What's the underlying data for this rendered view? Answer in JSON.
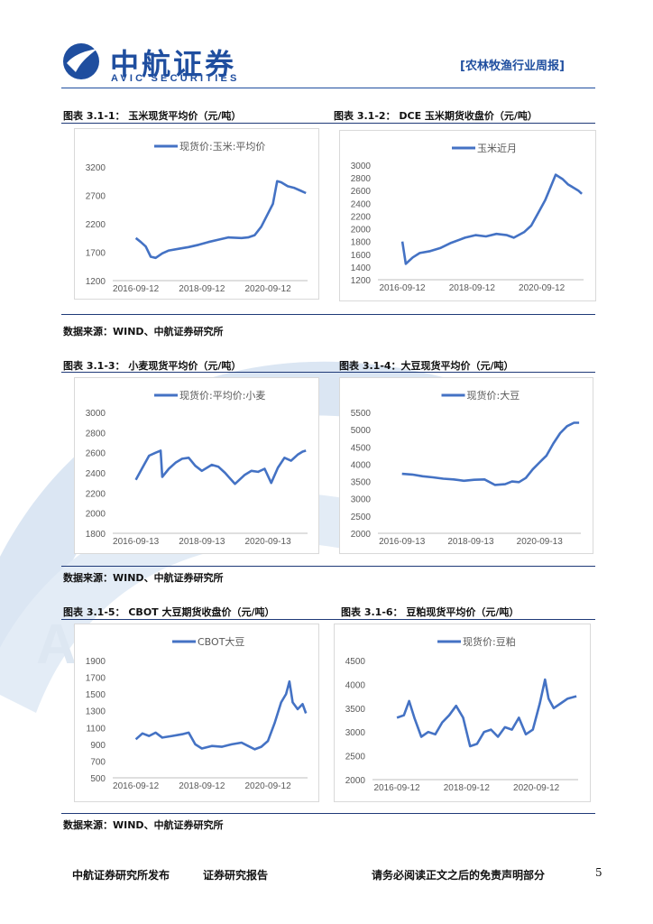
{
  "header": {
    "logo_name": "中航证券",
    "logo_sub": "AVIC SECURITIES",
    "logo_badge": "AVIC",
    "section_tag": "[农林牧渔行业周报]"
  },
  "theme": {
    "accent": "#1f4e9f",
    "line_color": "#4472c4",
    "watermark": "#c9d9ec"
  },
  "figures": [
    {
      "title": "图表 3.1-1：  玉米现货平均价（元/吨）",
      "chart_data": {
        "type": "line",
        "series": [
          {
            "name": "现货价:玉米:平均价"
          }
        ],
        "x_ticks": [
          "2016-09-12",
          "2018-09-12",
          "2020-09-12"
        ],
        "y_ticks": [
          1200,
          1700,
          2200,
          2700,
          3200
        ],
        "ylim": [
          1200,
          3200
        ],
        "x": [
          2016.7,
          2016.85,
          2017.0,
          2017.15,
          2017.3,
          2017.5,
          2017.7,
          2018.0,
          2018.3,
          2018.6,
          2018.9,
          2019.2,
          2019.5,
          2019.9,
          2020.1,
          2020.3,
          2020.5,
          2020.7,
          2020.85,
          2020.98,
          2021.1,
          2021.3,
          2021.5,
          2021.7,
          2021.85
        ],
        "values": [
          1950,
          1880,
          1800,
          1620,
          1600,
          1680,
          1730,
          1760,
          1790,
          1830,
          1880,
          1920,
          1960,
          1950,
          1960,
          2000,
          2150,
          2380,
          2550,
          2950,
          2930,
          2860,
          2830,
          2780,
          2740
        ]
      }
    },
    {
      "title": "图表 3.1-2：  DCE 玉米期货收盘价（元/吨）",
      "chart_data": {
        "type": "line",
        "series": [
          {
            "name": "玉米近月"
          }
        ],
        "x_ticks": [
          "2016-09-12",
          "2018-09-12",
          "2020-09-12"
        ],
        "y_ticks": [
          1200,
          1400,
          1600,
          1800,
          2000,
          2200,
          2400,
          2600,
          2800,
          3000
        ],
        "ylim": [
          1200,
          3000
        ],
        "x": [
          2016.7,
          2016.8,
          2016.9,
          2017.0,
          2017.2,
          2017.5,
          2017.8,
          2018.1,
          2018.5,
          2018.8,
          2019.1,
          2019.4,
          2019.7,
          2019.9,
          2020.2,
          2020.4,
          2020.6,
          2020.8,
          2020.95,
          2021.1,
          2021.3,
          2021.45,
          2021.6,
          2021.75,
          2021.85
        ],
        "values": [
          1800,
          1450,
          1500,
          1550,
          1620,
          1650,
          1700,
          1780,
          1860,
          1900,
          1880,
          1920,
          1900,
          1860,
          1950,
          2050,
          2250,
          2450,
          2650,
          2850,
          2780,
          2700,
          2650,
          2600,
          2550
        ]
      }
    },
    {
      "title": "图表 3.1-3：  小麦现货平均价（元/吨）",
      "chart_data": {
        "type": "line",
        "series": [
          {
            "name": "现货价:平均价:小麦"
          }
        ],
        "x_ticks": [
          "2016-09-13",
          "2018-09-13",
          "2020-09-13"
        ],
        "y_ticks": [
          1800,
          2000,
          2200,
          2400,
          2600,
          2800,
          3000
        ],
        "ylim": [
          1800,
          3000
        ],
        "x": [
          2016.7,
          2016.9,
          2017.1,
          2017.3,
          2017.45,
          2017.5,
          2017.7,
          2017.9,
          2018.1,
          2018.3,
          2018.5,
          2018.7,
          2019.0,
          2019.2,
          2019.4,
          2019.7,
          2020.0,
          2020.2,
          2020.4,
          2020.6,
          2020.8,
          2021.0,
          2021.2,
          2021.4,
          2021.6,
          2021.75,
          2021.85
        ],
        "values": [
          2330,
          2450,
          2570,
          2600,
          2620,
          2360,
          2440,
          2500,
          2540,
          2550,
          2470,
          2420,
          2480,
          2460,
          2400,
          2290,
          2380,
          2420,
          2410,
          2440,
          2300,
          2450,
          2550,
          2520,
          2580,
          2610,
          2620
        ]
      }
    },
    {
      "title": "图表 3.1-4：大豆现货平均价（元/吨）",
      "chart_data": {
        "type": "line",
        "series": [
          {
            "name": "现货价:大豆"
          }
        ],
        "x_ticks": [
          "2016-09-13",
          "2018-09-13",
          "2020-09-13"
        ],
        "y_ticks": [
          2000,
          2500,
          3000,
          3500,
          4000,
          4500,
          5000,
          5500
        ],
        "ylim": [
          2000,
          5500
        ],
        "x": [
          2016.7,
          2017.0,
          2017.3,
          2017.6,
          2017.9,
          2018.2,
          2018.5,
          2018.8,
          2019.1,
          2019.4,
          2019.7,
          2019.9,
          2020.1,
          2020.3,
          2020.5,
          2020.7,
          2020.9,
          2021.1,
          2021.3,
          2021.5,
          2021.7,
          2021.85
        ],
        "values": [
          3720,
          3700,
          3650,
          3620,
          3580,
          3560,
          3520,
          3550,
          3560,
          3400,
          3420,
          3500,
          3480,
          3600,
          3850,
          4050,
          4250,
          4600,
          4900,
          5100,
          5200,
          5200
        ]
      }
    },
    {
      "title": "图表 3.1-5：  CBOT 大豆期货收盘价（元/吨）",
      "chart_data": {
        "type": "line",
        "series": [
          {
            "name": "CBOT大豆"
          }
        ],
        "x_ticks": [
          "2016-09-12",
          "2018-09-12",
          "2020-09-12"
        ],
        "y_ticks": [
          500,
          700,
          900,
          1100,
          1300,
          1500,
          1700,
          1900
        ],
        "ylim": [
          500,
          1900
        ],
        "x": [
          2016.7,
          2016.9,
          2017.1,
          2017.3,
          2017.5,
          2017.8,
          2018.1,
          2018.3,
          2018.5,
          2018.7,
          2019.0,
          2019.3,
          2019.6,
          2019.9,
          2020.1,
          2020.3,
          2020.5,
          2020.7,
          2020.9,
          2021.1,
          2021.25,
          2021.35,
          2021.45,
          2021.6,
          2021.75,
          2021.85
        ],
        "values": [
          960,
          1030,
          1000,
          1040,
          980,
          1000,
          1020,
          1040,
          900,
          850,
          880,
          870,
          900,
          920,
          880,
          840,
          870,
          940,
          1150,
          1400,
          1500,
          1650,
          1400,
          1320,
          1380,
          1270
        ]
      }
    },
    {
      "title": "图表 3.1-6：  豆粕现货平均价（元/吨）",
      "chart_data": {
        "type": "line",
        "series": [
          {
            "name": "现货价:豆粕"
          }
        ],
        "x_ticks": [
          "2016-09-12",
          "2018-09-12",
          "2020-09-12"
        ],
        "y_ticks": [
          2000,
          2500,
          3000,
          3500,
          4000,
          4500
        ],
        "ylim": [
          2000,
          4500
        ],
        "x": [
          2016.7,
          2016.9,
          2017.05,
          2017.2,
          2017.4,
          2017.6,
          2017.8,
          2018.0,
          2018.2,
          2018.4,
          2018.6,
          2018.8,
          2019.0,
          2019.2,
          2019.4,
          2019.6,
          2019.8,
          2020.0,
          2020.2,
          2020.4,
          2020.6,
          2020.8,
          2020.95,
          2021.05,
          2021.2,
          2021.4,
          2021.6,
          2021.85
        ],
        "values": [
          3300,
          3350,
          3650,
          3300,
          2900,
          3000,
          2950,
          3200,
          3350,
          3550,
          3300,
          2700,
          2750,
          3000,
          3050,
          2900,
          3100,
          3050,
          3300,
          2950,
          3050,
          3600,
          4100,
          3700,
          3500,
          3600,
          3700,
          3750
        ]
      }
    }
  ],
  "source_note": "数据来源：WIND、中航证券研究所",
  "footer": {
    "publisher": "中航证券研究所发布",
    "report_type": "证券研究报告",
    "disclaimer": "请务必阅读正文之后的免责声明部分",
    "page": "5"
  }
}
